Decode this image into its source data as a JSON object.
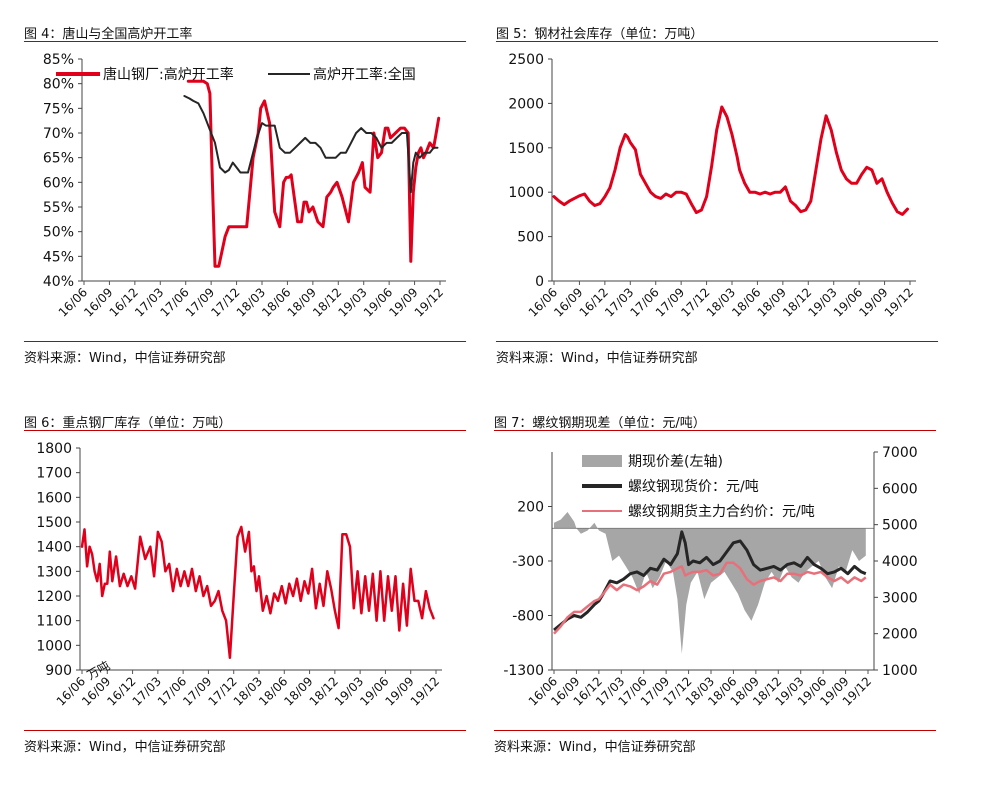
{
  "source_text": "资料来源：Wind，中信证券研究部",
  "colors": {
    "red": "#e0001b",
    "black": "#262626",
    "gray": "#a6a6a6",
    "pink": "#e8707a",
    "rule": "#c00000"
  },
  "chart_data": [
    {
      "id": "fig4",
      "type": "line",
      "title": "图 4：唐山与全国高炉开工率",
      "categories": [
        "16/06",
        "16/09",
        "16/12",
        "17/03",
        "17/06",
        "17/09",
        "17/12",
        "18/03",
        "18/06",
        "18/09",
        "18/12",
        "19/03",
        "19/06",
        "19/09",
        "19/12"
      ],
      "ylim": [
        40,
        85
      ],
      "yticks": [
        "40%",
        "45%",
        "50%",
        "55%",
        "60%",
        "65%",
        "70%",
        "75%",
        "80%",
        "85%"
      ],
      "legend": "top",
      "series": [
        {
          "name": "唐山钢厂:高炉开工率",
          "color": "#e0001b",
          "width": 3,
          "x": [
            4.1,
            4.25,
            4.5,
            4.7,
            4.85,
            4.95,
            5.05,
            5.15,
            5.3,
            5.55,
            5.7,
            5.85,
            5.95,
            6.05,
            6.2,
            6.4,
            6.65,
            6.85,
            6.95,
            7.1,
            7.3,
            7.5,
            7.7,
            7.85,
            7.95,
            8.05,
            8.15,
            8.4,
            8.55,
            8.65,
            8.75,
            8.85,
            9.0,
            9.2,
            9.4,
            9.55,
            9.7,
            9.8,
            9.95,
            10.15,
            10.4,
            10.6,
            10.8,
            10.95,
            11.05,
            11.25,
            11.4,
            11.55,
            11.7,
            11.85,
            11.95,
            12.05,
            12.25,
            12.45,
            12.6,
            12.75,
            12.85,
            12.95,
            13.05,
            13.15,
            13.25,
            13.35,
            13.45,
            13.6,
            13.75,
            13.85,
            13.95
          ],
          "y": [
            80.5,
            80.5,
            80.5,
            80.5,
            80,
            78,
            60,
            43,
            43,
            49,
            51,
            51,
            51,
            51,
            51,
            51,
            65,
            70,
            75,
            76.5,
            72,
            54,
            51,
            60,
            61,
            61,
            61.5,
            52,
            52,
            56,
            56,
            54,
            55,
            52,
            51,
            57,
            58,
            59,
            60,
            57,
            52,
            60,
            62,
            64,
            59,
            58,
            70,
            65,
            66,
            71,
            71,
            69,
            70,
            71,
            71,
            70,
            44,
            58,
            63,
            66,
            67,
            65,
            66,
            68,
            67,
            70,
            73
          ]
        },
        {
          "name": "高炉开工率:全国",
          "color": "#262626",
          "width": 2,
          "x": [
            3.95,
            4.15,
            4.3,
            4.5,
            4.7,
            4.85,
            5.0,
            5.15,
            5.35,
            5.55,
            5.7,
            5.85,
            6.0,
            6.15,
            6.3,
            6.45,
            6.6,
            6.8,
            7.0,
            7.15,
            7.3,
            7.5,
            7.7,
            7.9,
            8.1,
            8.3,
            8.5,
            8.7,
            8.9,
            9.1,
            9.3,
            9.5,
            9.7,
            9.9,
            10.1,
            10.3,
            10.5,
            10.7,
            10.9,
            11.1,
            11.3,
            11.5,
            11.7,
            11.9,
            12.1,
            12.3,
            12.5,
            12.7,
            12.85,
            12.95,
            13.05,
            13.2,
            13.4,
            13.6,
            13.75,
            13.9
          ],
          "y": [
            77.5,
            77,
            76.5,
            76,
            74,
            72,
            70,
            68,
            63,
            62,
            62.5,
            64,
            63,
            62,
            62,
            62,
            65,
            69,
            72,
            71.5,
            71.5,
            71.5,
            67,
            66,
            66,
            67,
            68,
            69,
            68,
            68,
            67,
            65,
            65,
            65,
            66,
            66,
            68,
            70,
            71,
            70,
            70,
            69,
            67,
            68,
            68,
            69,
            70,
            70,
            58,
            64,
            66,
            65,
            66,
            66,
            67,
            67
          ]
        }
      ]
    },
    {
      "id": "fig5",
      "type": "line",
      "title": "图 5：钢材社会库存（单位：万吨）",
      "categories": [
        "16/06",
        "16/09",
        "16/12",
        "17/03",
        "17/06",
        "17/09",
        "17/12",
        "18/03",
        "18/06",
        "18/09",
        "18/12",
        "19/03",
        "19/06",
        "19/09",
        "19/12"
      ],
      "ylim": [
        0,
        2500
      ],
      "yticks": [
        "0",
        "500",
        "1000",
        "1500",
        "2000",
        "2500"
      ],
      "series": [
        {
          "name": "",
          "color": "#e0001b",
          "width": 3,
          "x": [
            0,
            0.2,
            0.4,
            0.6,
            0.8,
            1.0,
            1.2,
            1.4,
            1.6,
            1.8,
            2.0,
            2.2,
            2.4,
            2.6,
            2.8,
            2.9,
            3.0,
            3.2,
            3.4,
            3.6,
            3.8,
            4.0,
            4.2,
            4.4,
            4.6,
            4.8,
            5.0,
            5.2,
            5.4,
            5.6,
            5.8,
            6.0,
            6.2,
            6.4,
            6.6,
            6.8,
            7.0,
            7.2,
            7.3,
            7.5,
            7.7,
            7.9,
            8.1,
            8.3,
            8.5,
            8.7,
            8.9,
            9.1,
            9.3,
            9.5,
            9.7,
            9.9,
            10.1,
            10.3,
            10.5,
            10.7,
            10.9,
            11.1,
            11.3,
            11.5,
            11.7,
            11.9,
            12.1,
            12.3,
            12.5,
            12.7,
            12.9,
            13.1,
            13.3,
            13.5,
            13.7,
            13.9
          ],
          "y": [
            950,
            900,
            860,
            900,
            930,
            960,
            980,
            900,
            850,
            870,
            950,
            1050,
            1250,
            1500,
            1650,
            1620,
            1560,
            1480,
            1200,
            1100,
            1000,
            950,
            930,
            980,
            950,
            1000,
            1000,
            980,
            870,
            770,
            800,
            950,
            1300,
            1700,
            1960,
            1850,
            1650,
            1400,
            1250,
            1100,
            1000,
            1000,
            980,
            1000,
            980,
            1000,
            1000,
            1060,
            900,
            850,
            780,
            800,
            900,
            1250,
            1600,
            1860,
            1700,
            1450,
            1250,
            1150,
            1100,
            1100,
            1200,
            1280,
            1250,
            1100,
            1150,
            1000,
            880,
            780,
            750,
            810
          ]
        }
      ]
    },
    {
      "id": "fig6",
      "type": "line",
      "title": "图 6：重点钢厂库存（单位：万吨）",
      "categories": [
        "16/06",
        "16/09",
        "16/12",
        "17/03",
        "17/06",
        "17/09",
        "17/12",
        "18/03",
        "18/06",
        "18/09",
        "18/12",
        "19/03",
        "19/06",
        "19/09",
        "19/12"
      ],
      "ylim": [
        900,
        1800
      ],
      "yticks": [
        "900",
        "1000",
        "1100",
        "1200",
        "1300",
        "1400",
        "1500",
        "1600",
        "1700",
        "1800"
      ],
      "series": [
        {
          "name": "",
          "color": "#e0001b",
          "width": 2.5,
          "x": [
            0,
            0.1,
            0.2,
            0.3,
            0.4,
            0.5,
            0.6,
            0.7,
            0.8,
            0.9,
            1.0,
            1.1,
            1.2,
            1.35,
            1.5,
            1.65,
            1.8,
            1.95,
            2.1,
            2.3,
            2.5,
            2.7,
            2.85,
            3.0,
            3.15,
            3.3,
            3.45,
            3.6,
            3.75,
            3.9,
            4.05,
            4.2,
            4.35,
            4.5,
            4.65,
            4.8,
            4.95,
            5.1,
            5.25,
            5.4,
            5.55,
            5.7,
            5.85,
            6.0,
            6.15,
            6.3,
            6.45,
            6.6,
            6.7,
            6.8,
            6.9,
            7.0,
            7.15,
            7.3,
            7.45,
            7.6,
            7.75,
            7.9,
            8.05,
            8.2,
            8.35,
            8.5,
            8.65,
            8.8,
            8.95,
            9.1,
            9.25,
            9.4,
            9.55,
            9.7,
            9.85,
            10.0,
            10.15,
            10.3,
            10.45,
            10.6,
            10.75,
            10.9,
            11.05,
            11.2,
            11.35,
            11.5,
            11.65,
            11.8,
            11.95,
            12.1,
            12.25,
            12.4,
            12.55,
            12.7,
            12.85,
            13.0,
            13.15,
            13.3,
            13.45,
            13.6,
            13.75,
            13.9
          ],
          "y": [
            1400,
            1470,
            1320,
            1400,
            1370,
            1300,
            1260,
            1330,
            1200,
            1250,
            1250,
            1380,
            1260,
            1360,
            1240,
            1290,
            1240,
            1280,
            1230,
            1440,
            1350,
            1400,
            1280,
            1460,
            1420,
            1300,
            1330,
            1220,
            1310,
            1240,
            1300,
            1240,
            1310,
            1220,
            1280,
            1200,
            1240,
            1160,
            1180,
            1220,
            1140,
            1100,
            950,
            1200,
            1440,
            1480,
            1380,
            1460,
            1300,
            1320,
            1220,
            1280,
            1140,
            1200,
            1130,
            1210,
            1180,
            1240,
            1170,
            1250,
            1200,
            1270,
            1180,
            1260,
            1210,
            1310,
            1150,
            1250,
            1160,
            1300,
            1230,
            1140,
            1070,
            1450,
            1450,
            1400,
            1150,
            1300,
            1130,
            1280,
            1140,
            1290,
            1100,
            1300,
            1100,
            1280,
            1140,
            1280,
            1060,
            1250,
            1080,
            1310,
            1180,
            1180,
            1110,
            1220,
            1150,
            1110
          ]
        }
      ]
    },
    {
      "id": "fig7",
      "type": "line",
      "title": "图 7：螺纹钢期现差（单位：元/吨）",
      "categories": [
        "16/06",
        "16/09",
        "16/12",
        "17/03",
        "17/06",
        "17/09",
        "17/12",
        "18/03",
        "18/06",
        "18/09",
        "18/12",
        "19/03",
        "19/06",
        "19/09",
        "19/12"
      ],
      "ylim_left": [
        -1300,
        700
      ],
      "ylim_right": [
        1000,
        7000
      ],
      "yticks_left": [
        "-1300",
        "-800",
        "-300",
        "200"
      ],
      "yticks_right": [
        "1000",
        "2000",
        "3000",
        "4000",
        "5000",
        "6000",
        "7000"
      ],
      "legend": "top",
      "series": [
        {
          "name": "期现价差(左轴)",
          "type": "area",
          "axis": "left",
          "color": "#a6a6a6",
          "x": [
            0,
            0.3,
            0.6,
            0.9,
            1.0,
            1.2,
            1.5,
            1.8,
            2.0,
            2.3,
            2.6,
            2.9,
            3.2,
            3.5,
            3.8,
            4.1,
            4.4,
            4.7,
            5.0,
            5.3,
            5.5,
            5.7,
            5.9,
            6.1,
            6.4,
            6.7,
            7.0,
            7.3,
            7.6,
            7.9,
            8.2,
            8.5,
            8.8,
            9.1,
            9.4,
            9.7,
            10.0,
            10.3,
            10.6,
            10.9,
            11.2,
            11.5,
            11.8,
            12.1,
            12.4,
            12.7,
            13.0,
            13.3,
            13.6,
            13.9
          ],
          "y": [
            50,
            80,
            150,
            60,
            0,
            -50,
            -20,
            50,
            -20,
            -50,
            -300,
            -250,
            -350,
            -450,
            -600,
            -400,
            -550,
            -450,
            -300,
            -400,
            -650,
            -1150,
            -700,
            -500,
            -400,
            -650,
            -500,
            -450,
            -400,
            -500,
            -600,
            -750,
            -850,
            -700,
            -500,
            -400,
            -500,
            -350,
            -450,
            -500,
            -400,
            -350,
            -300,
            -450,
            -550,
            -350,
            -400,
            -200,
            -300,
            -250
          ]
        },
        {
          "name": "螺纹钢现货价：元/吨",
          "type": "line",
          "axis": "right",
          "color": "#262626",
          "x": [
            0,
            0.3,
            0.6,
            0.9,
            1.2,
            1.5,
            1.8,
            2.0,
            2.2,
            2.5,
            2.8,
            3.1,
            3.4,
            3.7,
            4.0,
            4.3,
            4.6,
            4.9,
            5.2,
            5.5,
            5.7,
            5.85,
            6.0,
            6.2,
            6.5,
            6.8,
            7.1,
            7.4,
            7.7,
            8.0,
            8.3,
            8.6,
            8.9,
            9.2,
            9.5,
            9.8,
            10.1,
            10.4,
            10.7,
            11.0,
            11.3,
            11.6,
            11.9,
            12.2,
            12.5,
            12.8,
            13.1,
            13.4,
            13.7,
            13.9
          ],
          "y": [
            2100,
            2250,
            2400,
            2500,
            2450,
            2600,
            2800,
            2900,
            3100,
            3450,
            3400,
            3500,
            3650,
            3700,
            3600,
            3800,
            3750,
            4050,
            3900,
            4200,
            4800,
            4500,
            3900,
            4000,
            3950,
            4100,
            3900,
            4000,
            4250,
            4500,
            4550,
            4300,
            3900,
            3750,
            3800,
            3850,
            3750,
            3900,
            3950,
            3850,
            4100,
            3900,
            3800,
            3650,
            3700,
            3800,
            3650,
            3850,
            3700,
            3650
          ]
        },
        {
          "name": "螺纹钢期货主力合约价：元/吨",
          "type": "line",
          "axis": "right",
          "color": "#e8707a",
          "x": [
            0,
            0.3,
            0.6,
            0.9,
            1.2,
            1.5,
            1.8,
            2.0,
            2.2,
            2.5,
            2.8,
            3.1,
            3.4,
            3.7,
            4.0,
            4.3,
            4.6,
            4.9,
            5.2,
            5.5,
            5.7,
            5.85,
            6.0,
            6.2,
            6.5,
            6.8,
            7.1,
            7.4,
            7.7,
            8.0,
            8.3,
            8.6,
            8.9,
            9.2,
            9.5,
            9.8,
            10.1,
            10.4,
            10.7,
            11.0,
            11.3,
            11.6,
            11.9,
            12.2,
            12.5,
            12.8,
            13.1,
            13.4,
            13.7,
            13.9
          ],
          "y": [
            2000,
            2200,
            2450,
            2600,
            2600,
            2750,
            2900,
            2950,
            3100,
            3350,
            3200,
            3350,
            3300,
            3200,
            3300,
            3450,
            3350,
            3650,
            3700,
            3800,
            3850,
            3600,
            3650,
            3700,
            3700,
            3750,
            3600,
            3650,
            3950,
            3950,
            3800,
            3500,
            3350,
            3450,
            3500,
            3550,
            3450,
            3650,
            3650,
            3600,
            3700,
            3650,
            3700,
            3550,
            3450,
            3550,
            3400,
            3550,
            3450,
            3550
          ]
        }
      ]
    }
  ],
  "fig6_overlap_text": "万吨"
}
